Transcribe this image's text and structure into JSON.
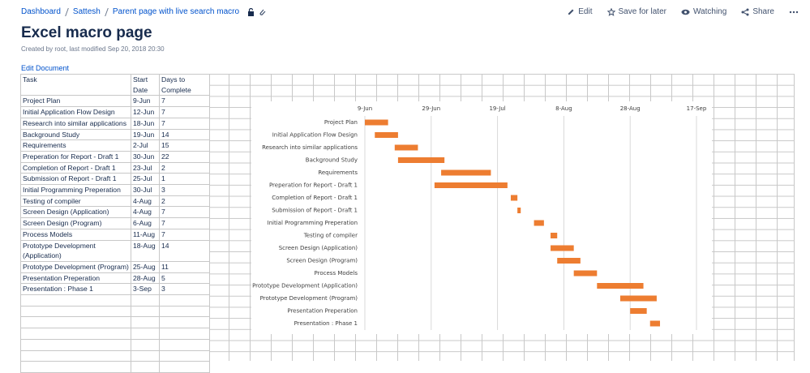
{
  "breadcrumbs": [
    "Dashboard",
    "Sattesh",
    "Parent page with live search macro"
  ],
  "actions": [
    "Edit",
    "Save for later",
    "Watching",
    "Share"
  ],
  "title": "Excel macro page",
  "byline": "Created by root, last modified Sep 20, 2018 20:30",
  "edit_link": "Edit Document",
  "table": {
    "header": [
      "Task",
      "Start Date",
      "Days to Complete"
    ],
    "rows": [
      [
        "Project Plan",
        "9-Jun",
        7
      ],
      [
        "Initial Application Flow Design",
        "12-Jun",
        7
      ],
      [
        "Research into similar applications",
        "18-Jun",
        7
      ],
      [
        "Background Study",
        "19-Jun",
        14
      ],
      [
        "Requirements",
        "2-Jul",
        15
      ],
      [
        "Preperation for Report - Draft 1",
        "30-Jun",
        22
      ],
      [
        "Completion of Report - Draft 1",
        "23-Jul",
        2
      ],
      [
        "Submission of Report - Draft 1",
        "25-Jul",
        1
      ],
      [
        "Initial Programming Preperation",
        "30-Jul",
        3
      ],
      [
        "Testing of compiler",
        "4-Aug",
        2
      ],
      [
        "Screen Design (Application)",
        "4-Aug",
        7
      ],
      [
        "Screen Design (Program)",
        "6-Aug",
        7
      ],
      [
        "Process Models",
        "11-Aug",
        7
      ],
      [
        "Prototype Development (Application)",
        "18-Aug",
        14
      ],
      [
        "Prototype Development (Program)",
        "25-Aug",
        11
      ],
      [
        "Presentation Preperation",
        "28-Aug",
        5
      ],
      [
        "Presentation : Phase 1",
        "3-Sep",
        3
      ]
    ]
  },
  "chart_data": {
    "type": "gantt",
    "categories": [
      "Project Plan",
      "Initial Application Flow Design",
      "Research into similar applications",
      "Background Study",
      "Requirements",
      "Preperation for Report - Draft 1",
      "Completion of Report - Draft 1",
      "Submission of Report - Draft 1",
      "Initial Programming Preperation",
      "Testing of compiler",
      "Screen Design (Application)",
      "Screen Design (Program)",
      "Process Models",
      "Prototype Development (Application)",
      "Prototype Development (Program)",
      "Presentation Preperation",
      "Presentation : Phase 1"
    ],
    "x": [
      "9-Jun",
      "12-Jun",
      "18-Jun",
      "19-Jun",
      "2-Jul",
      "30-Jun",
      "23-Jul",
      "25-Jul",
      "30-Jul",
      "4-Aug",
      "4-Aug",
      "6-Aug",
      "11-Aug",
      "18-Aug",
      "25-Aug",
      "28-Aug",
      "3-Sep"
    ],
    "values": [
      7,
      7,
      7,
      14,
      15,
      22,
      2,
      1,
      3,
      2,
      7,
      7,
      7,
      14,
      11,
      5,
      3
    ],
    "color": "#ed7d31",
    "xlim": [
      "9-Jun",
      "17-Sep"
    ],
    "xticks": [
      "9-Jun",
      "29-Jun",
      "19-Jul",
      "8-Aug",
      "28-Aug",
      "17-Sep"
    ],
    "grid": true
  }
}
